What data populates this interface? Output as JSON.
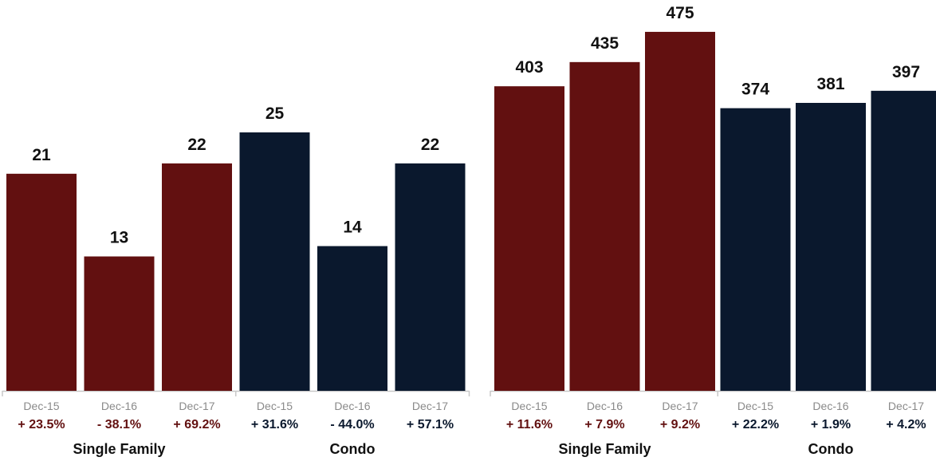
{
  "colors": {
    "single_family": "#621010",
    "condo": "#0a182d",
    "axis": "#c8c8c8",
    "tick_text": "#8a8a8a"
  },
  "chart_data": [
    {
      "type": "bar",
      "categories": [
        "Dec-15",
        "Dec-16",
        "Dec-17"
      ],
      "ylim": [
        0,
        27
      ],
      "series": [
        {
          "name": "Single Family",
          "values": [
            21,
            13,
            22
          ],
          "changes": [
            "+ 23.5%",
            "- 38.1%",
            "+ 69.2%"
          ]
        },
        {
          "name": "Condo",
          "values": [
            25,
            14,
            22
          ],
          "changes": [
            "+ 31.6%",
            "- 44.0%",
            "+ 57.1%"
          ]
        }
      ]
    },
    {
      "type": "bar",
      "categories": [
        "Dec-15",
        "Dec-16",
        "Dec-17"
      ],
      "ylim": [
        0,
        500
      ],
      "series": [
        {
          "name": "Single Family",
          "values": [
            403,
            435,
            475
          ],
          "changes": [
            "+ 11.6%",
            "+ 7.9%",
            "+ 9.2%"
          ]
        },
        {
          "name": "Condo",
          "values": [
            374,
            381,
            397
          ],
          "changes": [
            "+ 22.2%",
            "+ 1.9%",
            "+ 4.2%"
          ]
        }
      ]
    }
  ]
}
